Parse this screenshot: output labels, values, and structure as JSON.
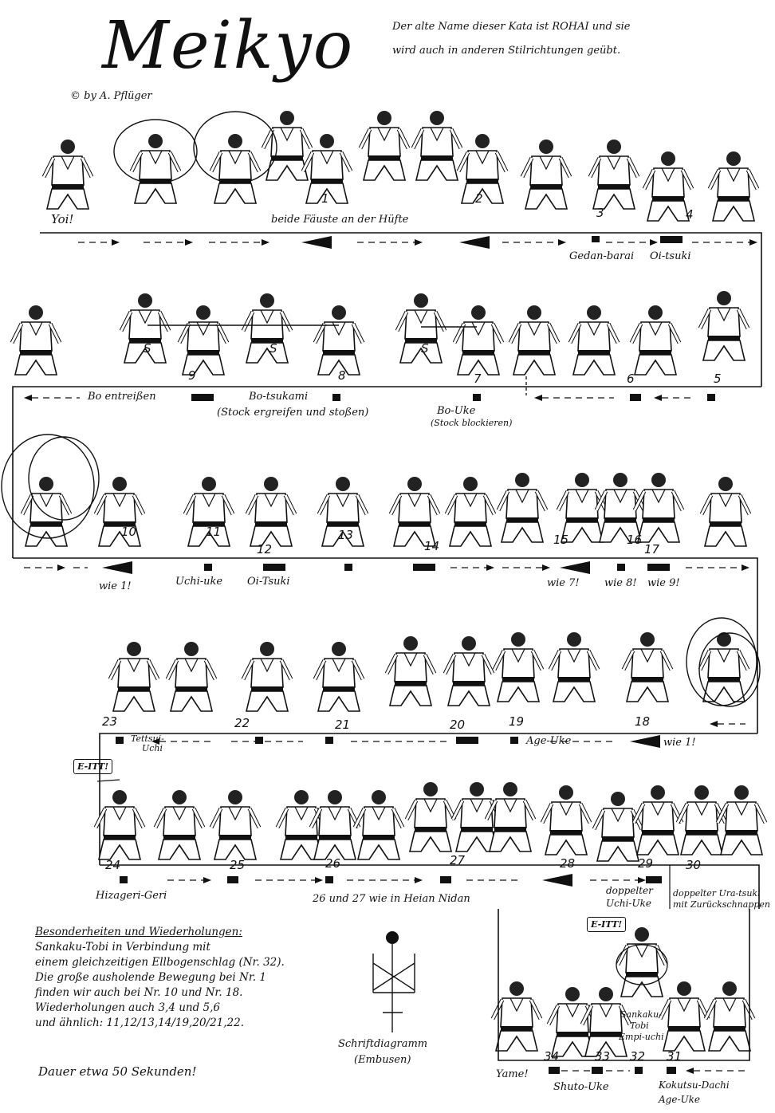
{
  "header": {
    "title": "Meikyo",
    "copyright": "© by A. Pflüger",
    "intro_line1": "Der alte Name dieser Kata ist ROHAI und sie",
    "intro_line2": "wird auch in anderen Stilrichtungen geübt."
  },
  "row1": {
    "yoi": "Yoi!",
    "note": "beide Fäuste an der Hüfte",
    "numbers": [
      "1",
      "2",
      "3",
      "4"
    ],
    "tech1": "Gedan-barai",
    "tech2": "Oi-tsuki"
  },
  "row2": {
    "numbers": [
      "9",
      "8",
      "7",
      "6",
      "5"
    ],
    "s_marks": [
      "S",
      "S",
      "S"
    ],
    "bo_entreissen": "Bo entreißen",
    "bo_tsukami": "Bo-tsukami",
    "bo_tsukami_sub": "(Stock ergreifen und stoßen)",
    "bo_uke": "Bo-Uke",
    "bo_uke_sub": "(Stock blockieren)"
  },
  "row3": {
    "numbers": [
      "10",
      "11",
      "12",
      "13",
      "14",
      "15",
      "16",
      "17"
    ],
    "wie1": "wie 1!",
    "uchi_uke": "Uchi-uke",
    "oi_tsuki": "Oi-Tsuki",
    "wie7": "wie 7!",
    "wie8": "wie 8!",
    "wie9": "wie 9!"
  },
  "row4": {
    "numbers": [
      "23",
      "22",
      "21",
      "20",
      "19",
      "18"
    ],
    "tettsui": "Tettsui-",
    "tettsui2": "Uchi",
    "age_uke": "Age-Uke",
    "wie1": "wie 1!"
  },
  "row5": {
    "eitt": "E-ITT!",
    "numbers": [
      "24",
      "25",
      "26",
      "27",
      "28",
      "29",
      "30"
    ],
    "hiza": "Hizageri-Geri",
    "heian": "26 und 27 wie in Heian Nidan",
    "doppelter": "doppelter",
    "doppelter2": "Uchi-Uke",
    "ura1": "doppelter Ura-tsuki",
    "ura2": "mit Zurückschnappen"
  },
  "notes": {
    "heading": "Besonderheiten und Wiederholungen:",
    "lines": [
      "Sankaku-Tobi in Verbindung mit",
      "einem gleichzeitigen Ellbogenschlag (Nr. 32).",
      "Die große ausholende Bewegung bei Nr. 1",
      "finden wir auch bei Nr. 10 und Nr. 18.",
      "   Wiederholungen auch 3,4 und 5,6",
      "und ähnlich: 11,12/13,14/19,20/21,22."
    ],
    "duration": "Dauer etwa 50 Sekunden!"
  },
  "diagram": {
    "label1": "Schriftdiagramm",
    "label2": "(Embusen)"
  },
  "row6": {
    "eitt": "E-ITT!",
    "numbers": [
      "34",
      "33",
      "32",
      "31"
    ],
    "sankaku": "Sankaku-",
    "sankaku2": "Tobi",
    "sankaku3": "Empi-uchi",
    "yame": "Yame!",
    "shuto": "Shuto-Uke",
    "kokutsu": "Kokutsu-Dachi",
    "kokutsu2": "Age-Uke"
  }
}
